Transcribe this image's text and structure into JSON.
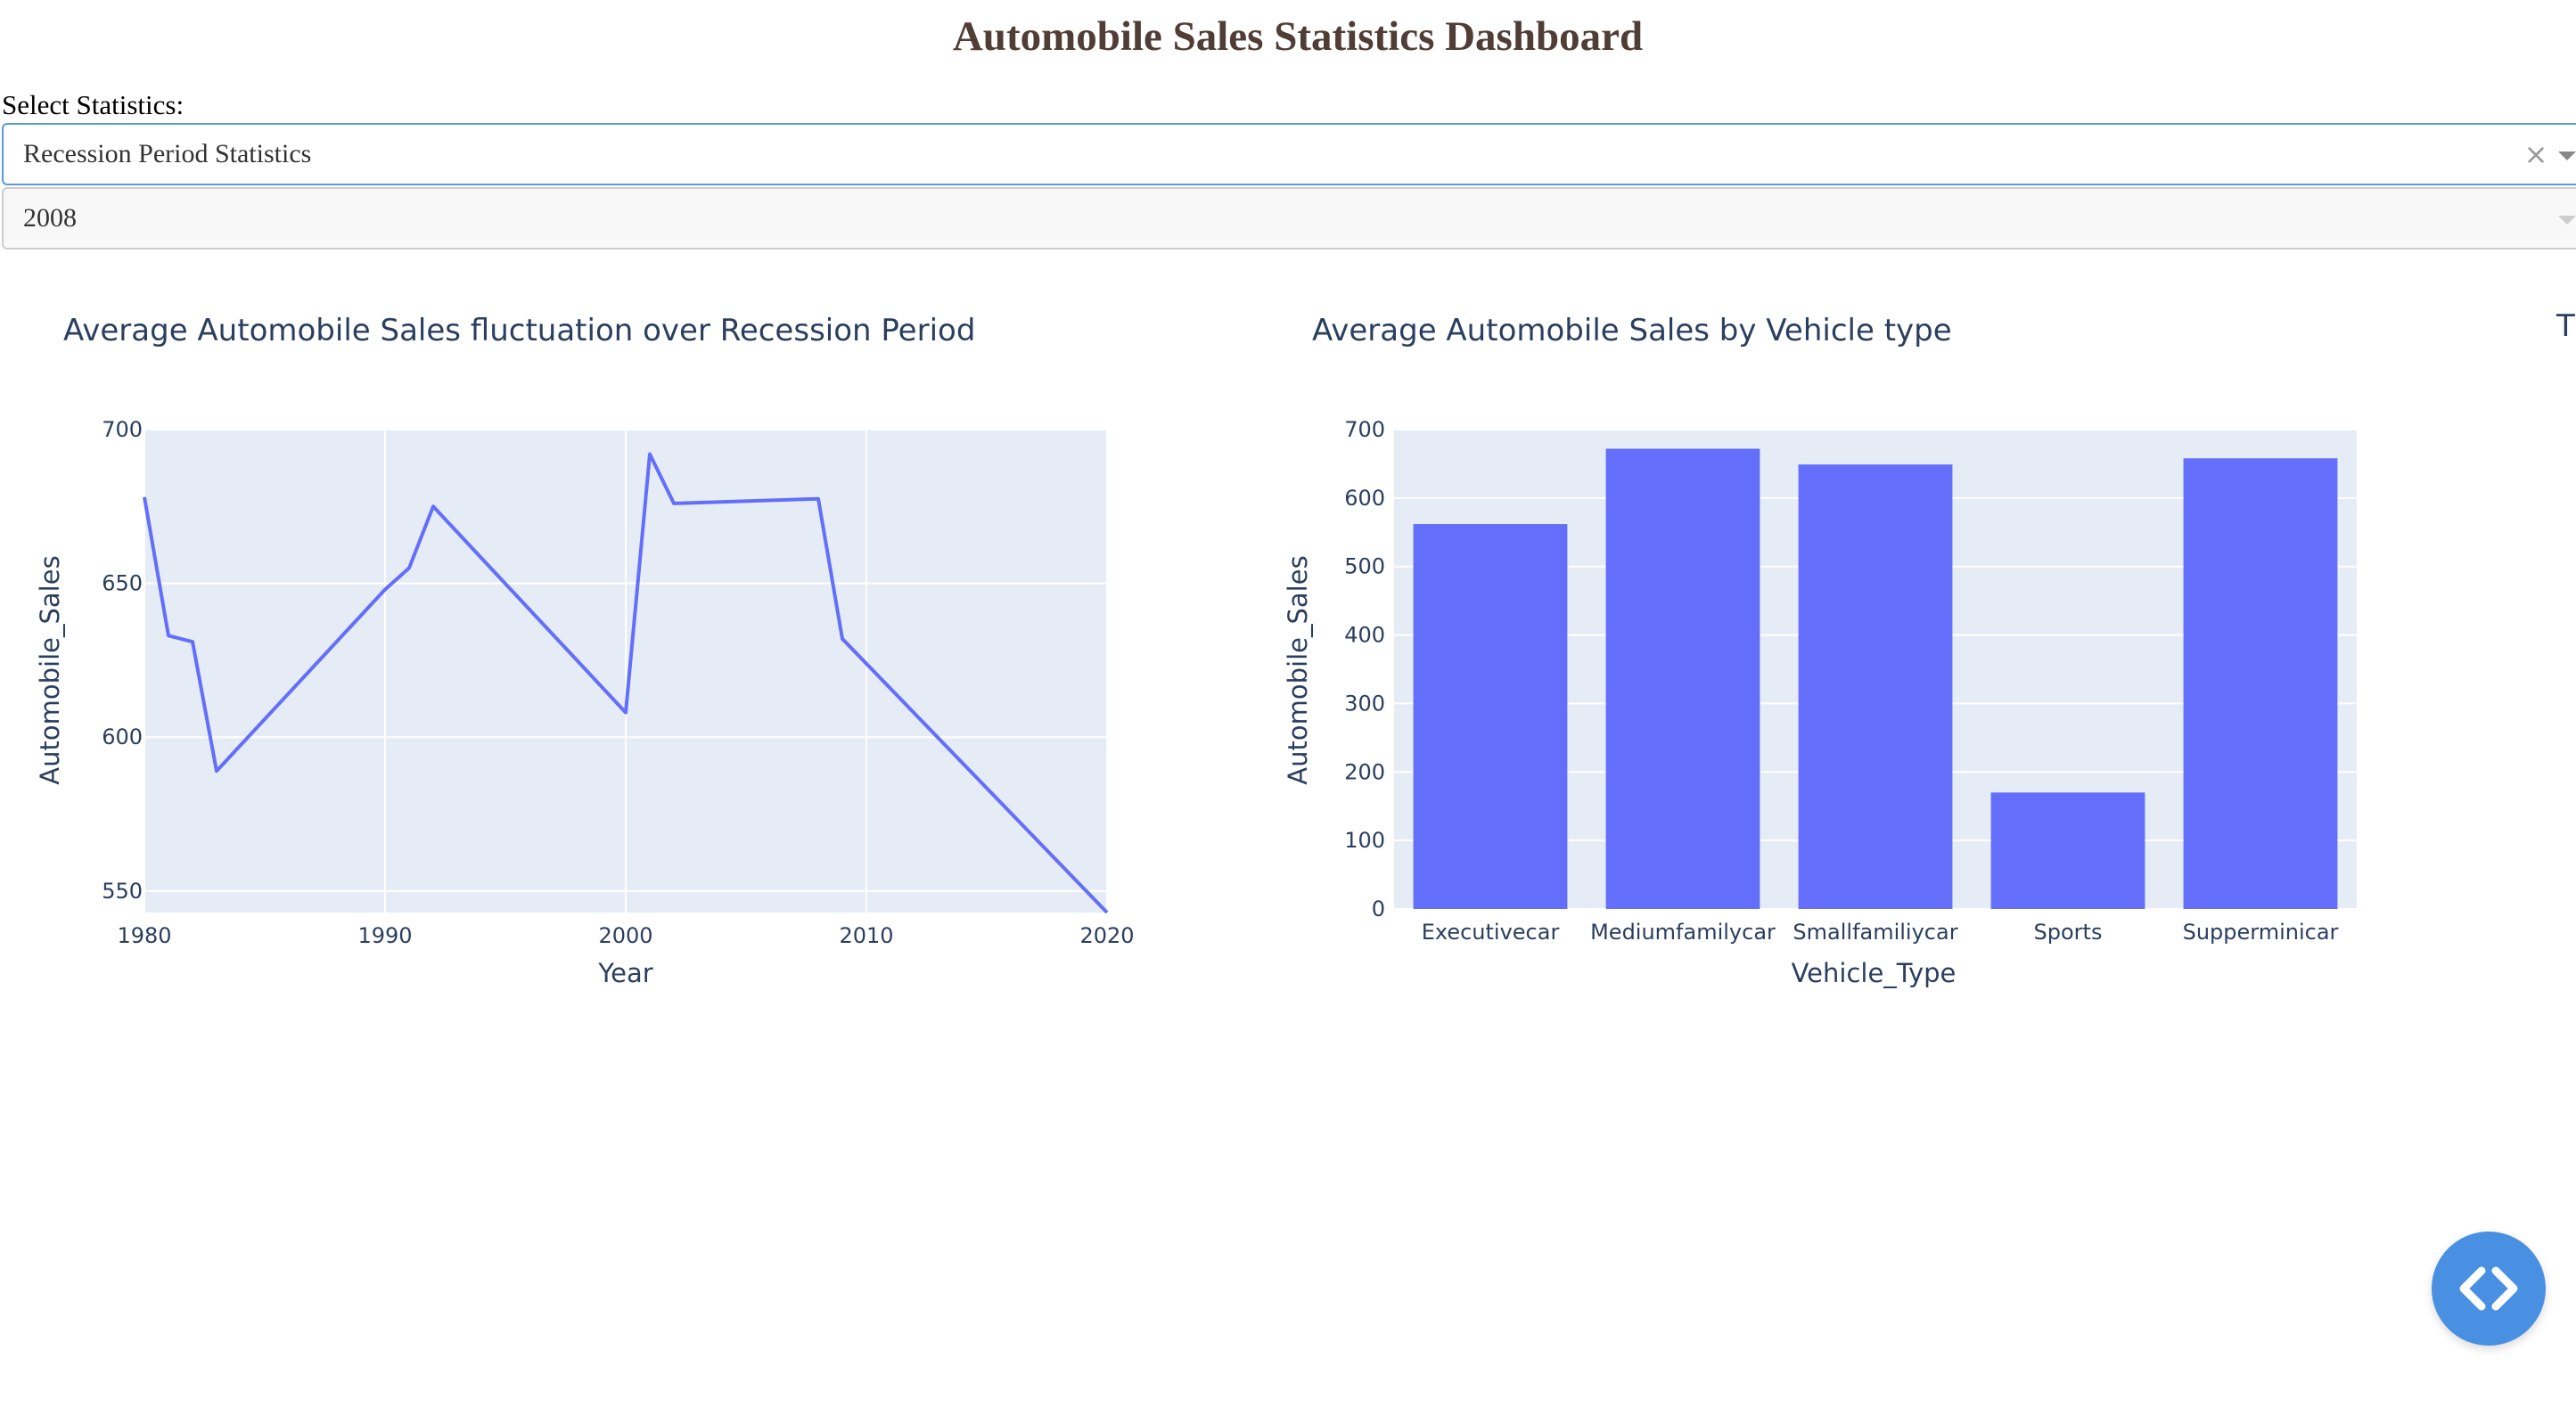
{
  "page": {
    "title": "Automobile Sales Statistics Dashboard",
    "select_label": "Select Statistics:"
  },
  "dropdowns": {
    "statistics": {
      "value": "Recession Period Statistics",
      "clear_icon": "close-icon",
      "caret_icon": "chevron-down-icon"
    },
    "year": {
      "value": "2008",
      "caret_icon": "chevron-down-icon"
    }
  },
  "cut_off_chart_title": "T",
  "fab": {
    "icon": "code-icon",
    "color": "#4a90e2"
  },
  "colors": {
    "title": "#503d36",
    "plot_bg": "#e5ecf6",
    "series": "#636efa",
    "axis_text": "#2a3f5f"
  },
  "chart_data": [
    {
      "type": "line",
      "title": "Average Automobile Sales fluctuation over Recession Period",
      "xlabel": "Year",
      "ylabel": "Automobile_Sales",
      "x": [
        1980,
        1981,
        1982,
        1983,
        1990,
        1991,
        1992,
        2000,
        2001,
        2002,
        2008,
        2009,
        2020
      ],
      "y": [
        678,
        633,
        631,
        589,
        648,
        655,
        675,
        608,
        692,
        676,
        677.5,
        632,
        543
      ],
      "xlim": [
        1980,
        2020
      ],
      "ylim": [
        543,
        700
      ],
      "xticks": [
        1980,
        1990,
        2000,
        2010,
        2020
      ],
      "yticks": [
        550,
        600,
        650,
        700
      ],
      "grid": true
    },
    {
      "type": "bar",
      "title": "Average Automobile Sales by Vehicle type",
      "xlabel": "Vehicle_Type",
      "ylabel": "Automobile_Sales",
      "categories": [
        "Executivecar",
        "Mediumfamilycar",
        "Smallfamiliycar",
        "Sports",
        "Supperminicar"
      ],
      "values": [
        562,
        672,
        649,
        170,
        658
      ],
      "ylim": [
        0,
        700
      ],
      "yticks": [
        0,
        100,
        200,
        300,
        400,
        500,
        600,
        700
      ],
      "grid": true
    }
  ]
}
